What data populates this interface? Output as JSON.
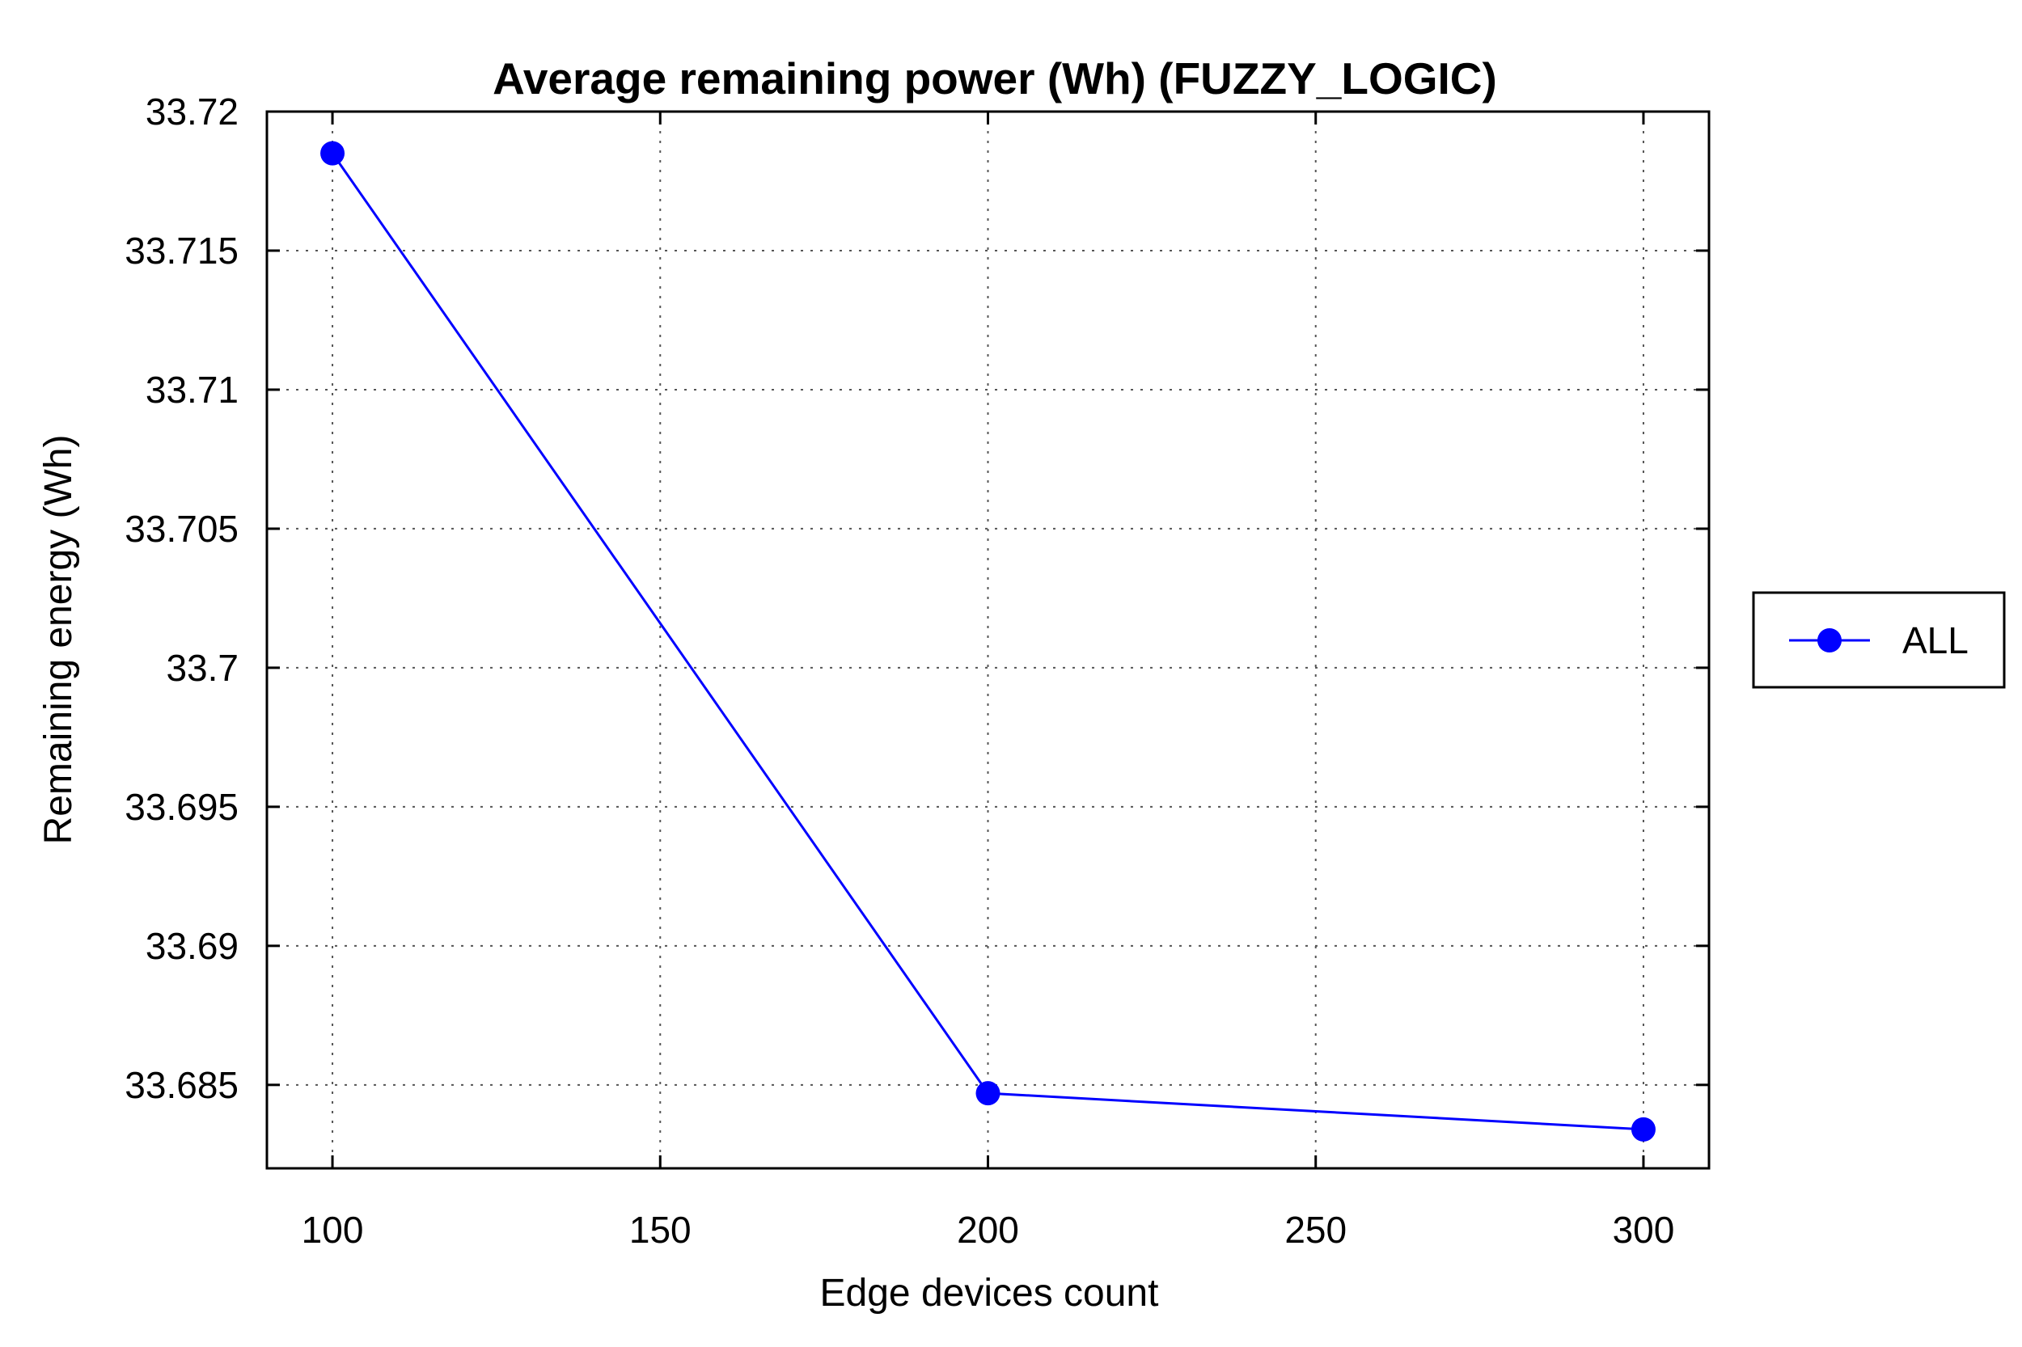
{
  "chart_data": {
    "type": "line",
    "title": "Average remaining power (Wh) (FUZZY_LOGIC)",
    "xlabel": "Edge devices count",
    "ylabel": "Remaining energy (Wh)",
    "xlim": [
      90,
      310
    ],
    "ylim": [
      33.682,
      33.72
    ],
    "xticks": [
      100,
      150,
      200,
      250,
      300
    ],
    "xtick_labels": [
      "100",
      "150",
      "200",
      "250",
      "300"
    ],
    "yticks": [
      33.685,
      33.69,
      33.695,
      33.7,
      33.705,
      33.71,
      33.715,
      33.72
    ],
    "ytick_labels": [
      "33.685",
      "33.69",
      "33.695",
      "33.7",
      "33.705",
      "33.71",
      "33.715",
      "33.72"
    ],
    "grid": true,
    "legend_position": "outside-right",
    "series": [
      {
        "name": "ALL",
        "color": "#0000ff",
        "marker": "circle",
        "x": [
          100,
          200,
          300
        ],
        "y": [
          33.7185,
          33.6847,
          33.6834
        ]
      }
    ]
  }
}
